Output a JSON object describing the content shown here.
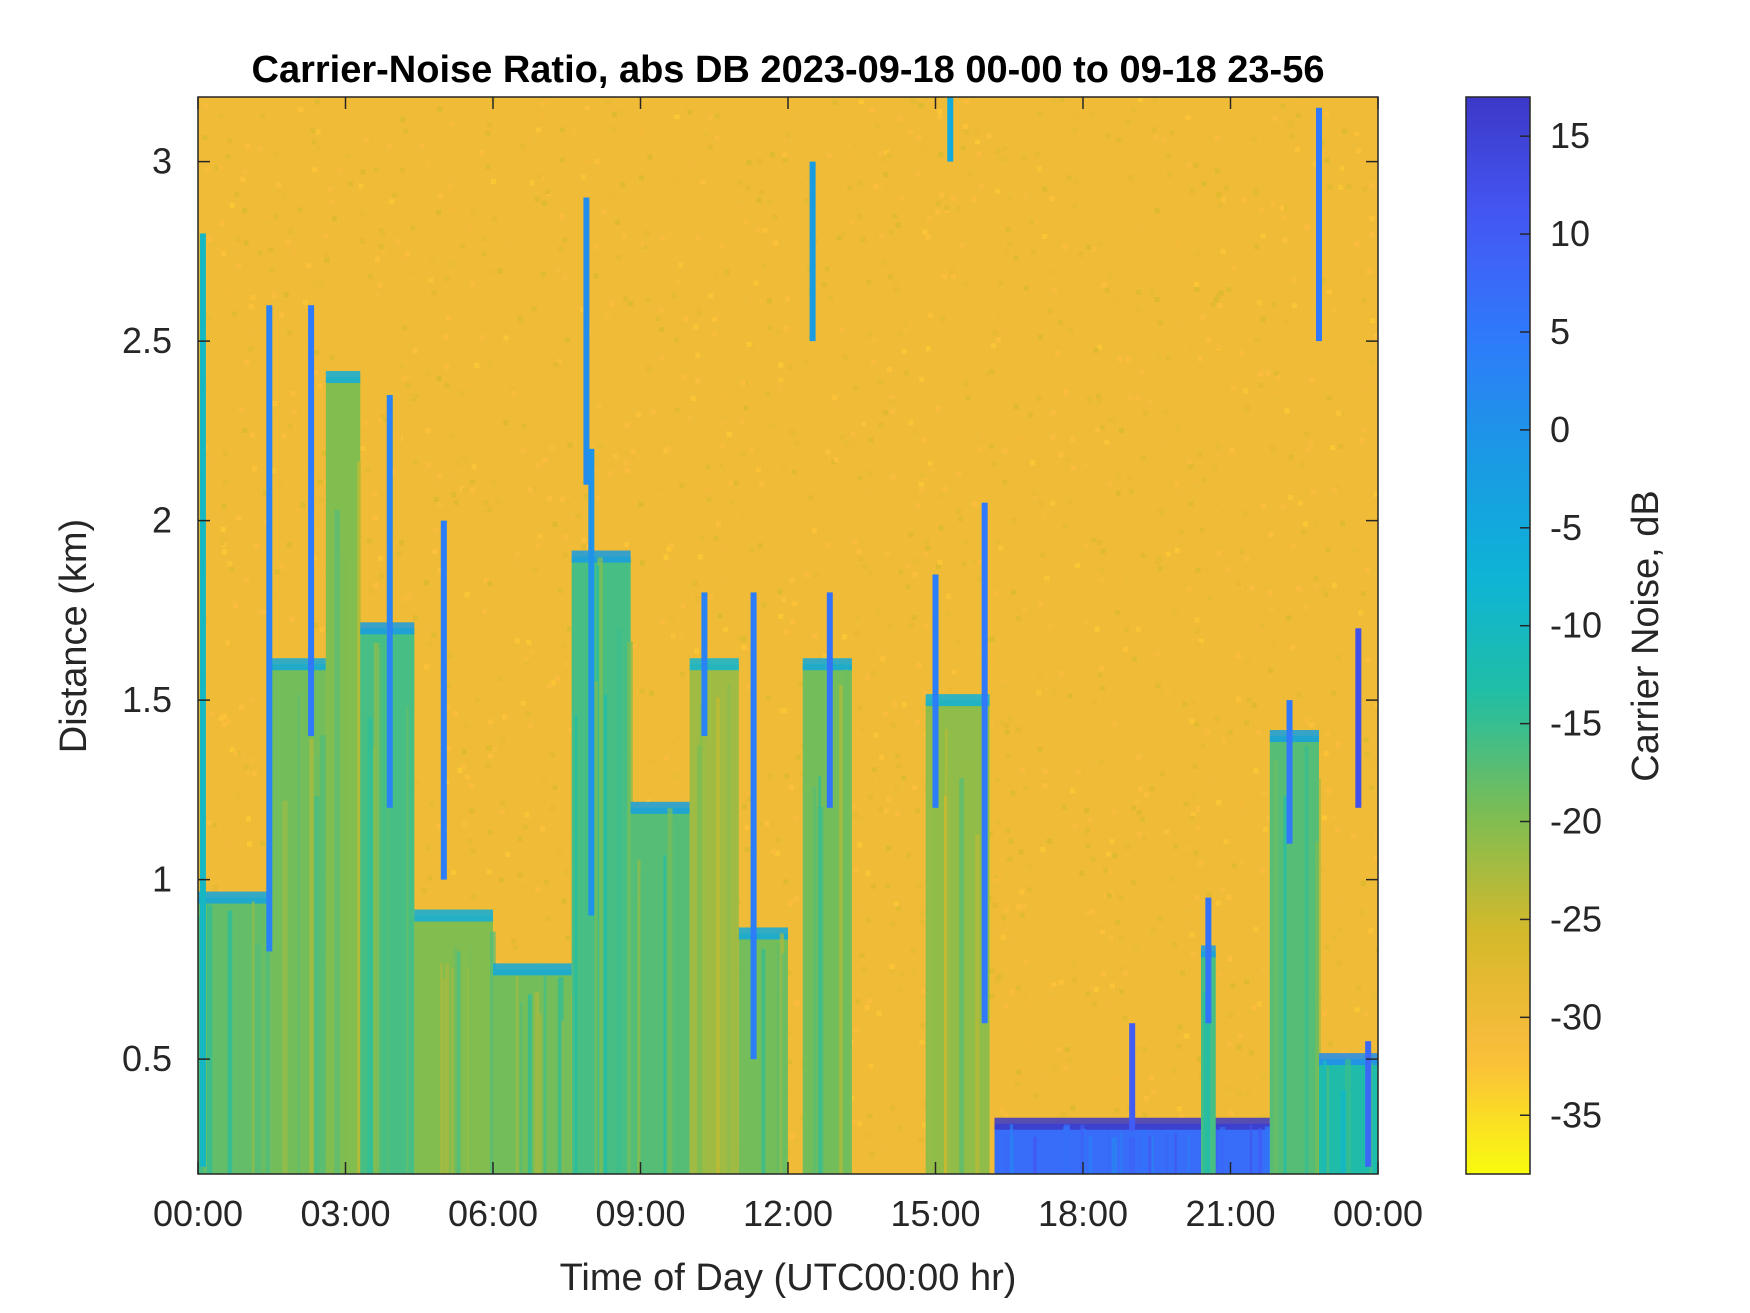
{
  "chart_data": {
    "type": "heatmap",
    "title": "Carrier-Noise Ratio, abs DB 2023-09-18 00-00 to 09-18 23-56",
    "xlabel": "Time of Day (UTC00:00 hr)",
    "ylabel": "Distance (km)",
    "colorbar_label": "Carrier Noise, dB",
    "x_range_hours": [
      0,
      24
    ],
    "y_range_km": [
      0.18,
      3.18
    ],
    "color_range_db": [
      -38,
      17
    ],
    "x_ticks": [
      {
        "value": 0,
        "label": "00:00"
      },
      {
        "value": 3,
        "label": "03:00"
      },
      {
        "value": 6,
        "label": "06:00"
      },
      {
        "value": 9,
        "label": "09:00"
      },
      {
        "value": 12,
        "label": "12:00"
      },
      {
        "value": 15,
        "label": "15:00"
      },
      {
        "value": 18,
        "label": "18:00"
      },
      {
        "value": 21,
        "label": "21:00"
      },
      {
        "value": 24,
        "label": "00:00"
      }
    ],
    "y_ticks": [
      {
        "value": 0.5,
        "label": "0.5"
      },
      {
        "value": 1,
        "label": "1"
      },
      {
        "value": 1.5,
        "label": "1.5"
      },
      {
        "value": 2,
        "label": "2"
      },
      {
        "value": 2.5,
        "label": "2.5"
      },
      {
        "value": 3,
        "label": "3"
      }
    ],
    "colorbar_ticks": [
      {
        "value": 15,
        "label": "15"
      },
      {
        "value": 10,
        "label": "10"
      },
      {
        "value": 5,
        "label": "5"
      },
      {
        "value": 0,
        "label": "0"
      },
      {
        "value": -5,
        "label": "-5"
      },
      {
        "value": -10,
        "label": "-10"
      },
      {
        "value": -15,
        "label": "-15"
      },
      {
        "value": -20,
        "label": "-20"
      },
      {
        "value": -25,
        "label": "-25"
      },
      {
        "value": -30,
        "label": "-30"
      },
      {
        "value": -35,
        "label": "-35"
      }
    ],
    "background_db": -30,
    "colormap": [
      "#F9FB0E",
      "#FBBC3D",
      "#D6B92A",
      "#7DBD52",
      "#21BEA5",
      "#0DB4D6",
      "#1A99E4",
      "#2F7AFB",
      "#4457F3",
      "#3C38C8"
    ],
    "signal_regions": [
      {
        "t_start": 0.0,
        "t_end": 1.5,
        "top_km": 0.95,
        "db": -18
      },
      {
        "t_start": 1.5,
        "t_end": 2.6,
        "top_km": 1.6,
        "db": -19
      },
      {
        "t_start": 2.6,
        "t_end": 3.3,
        "top_km": 2.4,
        "db": -20
      },
      {
        "t_start": 3.3,
        "t_end": 4.4,
        "top_km": 1.7,
        "db": -16
      },
      {
        "t_start": 4.4,
        "t_end": 6.0,
        "top_km": 0.9,
        "db": -20
      },
      {
        "t_start": 6.0,
        "t_end": 7.6,
        "top_km": 0.75,
        "db": -19
      },
      {
        "t_start": 7.6,
        "t_end": 8.8,
        "top_km": 1.9,
        "db": -16
      },
      {
        "t_start": 8.8,
        "t_end": 10.0,
        "top_km": 1.2,
        "db": -17
      },
      {
        "t_start": 10.0,
        "t_end": 11.0,
        "top_km": 1.6,
        "db": -22
      },
      {
        "t_start": 11.0,
        "t_end": 12.0,
        "top_km": 0.85,
        "db": -19
      },
      {
        "t_start": 12.3,
        "t_end": 13.3,
        "top_km": 1.6,
        "db": -19
      },
      {
        "t_start": 14.8,
        "t_end": 16.1,
        "top_km": 1.5,
        "db": -21
      },
      {
        "t_start": 16.2,
        "t_end": 21.8,
        "top_km": 0.32,
        "db": 7
      },
      {
        "t_start": 20.4,
        "t_end": 20.7,
        "top_km": 0.8,
        "db": -16
      },
      {
        "t_start": 21.8,
        "t_end": 22.8,
        "top_km": 1.4,
        "db": -17
      },
      {
        "t_start": 22.8,
        "t_end": 24.0,
        "top_km": 0.5,
        "db": -13
      }
    ],
    "streaks": [
      {
        "t": 0.1,
        "bottom_km": 0.2,
        "top_km": 2.8,
        "db": -10
      },
      {
        "t": 1.45,
        "bottom_km": 0.8,
        "top_km": 2.6,
        "db": 3
      },
      {
        "t": 2.3,
        "bottom_km": 1.4,
        "top_km": 2.6,
        "db": 5
      },
      {
        "t": 3.9,
        "bottom_km": 1.2,
        "top_km": 2.35,
        "db": 3
      },
      {
        "t": 5.0,
        "bottom_km": 1.0,
        "top_km": 2.0,
        "db": 4
      },
      {
        "t": 7.9,
        "bottom_km": 2.1,
        "top_km": 2.9,
        "db": 1
      },
      {
        "t": 8.0,
        "bottom_km": 0.9,
        "top_km": 2.2,
        "db": 0
      },
      {
        "t": 10.3,
        "bottom_km": 1.4,
        "top_km": 1.8,
        "db": 3
      },
      {
        "t": 11.3,
        "bottom_km": 0.5,
        "top_km": 1.8,
        "db": 4
      },
      {
        "t": 12.5,
        "bottom_km": 2.5,
        "top_km": 3.0,
        "db": -2
      },
      {
        "t": 12.85,
        "bottom_km": 1.2,
        "top_km": 1.8,
        "db": 6
      },
      {
        "t": 15.0,
        "bottom_km": 1.2,
        "top_km": 1.85,
        "db": 4
      },
      {
        "t": 15.3,
        "bottom_km": 3.0,
        "top_km": 3.18,
        "db": -5
      },
      {
        "t": 16.0,
        "bottom_km": 0.6,
        "top_km": 2.05,
        "db": 5
      },
      {
        "t": 19.0,
        "bottom_km": 0.3,
        "top_km": 0.6,
        "db": 10
      },
      {
        "t": 20.55,
        "bottom_km": 0.6,
        "top_km": 0.95,
        "db": 6
      },
      {
        "t": 22.2,
        "bottom_km": 1.1,
        "top_km": 1.5,
        "db": 5
      },
      {
        "t": 22.8,
        "bottom_km": 2.5,
        "top_km": 3.15,
        "db": 5
      },
      {
        "t": 23.6,
        "bottom_km": 1.2,
        "top_km": 1.7,
        "db": 12
      },
      {
        "t": 23.8,
        "bottom_km": 0.2,
        "top_km": 0.55,
        "db": 8
      }
    ]
  }
}
